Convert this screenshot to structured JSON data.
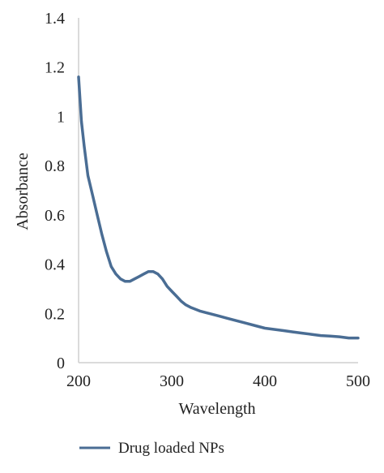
{
  "chart_data": {
    "type": "line",
    "title": "",
    "xlabel": "Wavelength",
    "ylabel": "Absorbance",
    "xlim": [
      200,
      500
    ],
    "ylim": [
      0,
      1.4
    ],
    "x_ticks": [
      "200",
      "300",
      "400",
      "500"
    ],
    "y_ticks": [
      "0",
      "0.2",
      "0.4",
      "0.6",
      "0.8",
      "1",
      "1.2",
      "1.4"
    ],
    "grid": false,
    "legend_position": "bottom",
    "colors": {
      "series": "#4a6d94"
    },
    "series": [
      {
        "name": "Drug loaded NPs",
        "x": [
          200,
          203,
          206,
          210,
          215,
          220,
          225,
          230,
          235,
          240,
          245,
          250,
          255,
          260,
          265,
          270,
          275,
          280,
          285,
          290,
          295,
          300,
          305,
          310,
          315,
          320,
          330,
          340,
          350,
          360,
          370,
          380,
          390,
          400,
          410,
          420,
          430,
          440,
          450,
          460,
          470,
          480,
          490,
          500
        ],
        "y": [
          1.16,
          0.98,
          0.88,
          0.76,
          0.68,
          0.6,
          0.52,
          0.45,
          0.39,
          0.36,
          0.34,
          0.33,
          0.33,
          0.34,
          0.35,
          0.36,
          0.37,
          0.37,
          0.36,
          0.34,
          0.31,
          0.29,
          0.27,
          0.25,
          0.235,
          0.225,
          0.21,
          0.2,
          0.19,
          0.18,
          0.17,
          0.16,
          0.15,
          0.14,
          0.135,
          0.13,
          0.125,
          0.12,
          0.115,
          0.11,
          0.108,
          0.105,
          0.1,
          0.1
        ]
      }
    ]
  }
}
